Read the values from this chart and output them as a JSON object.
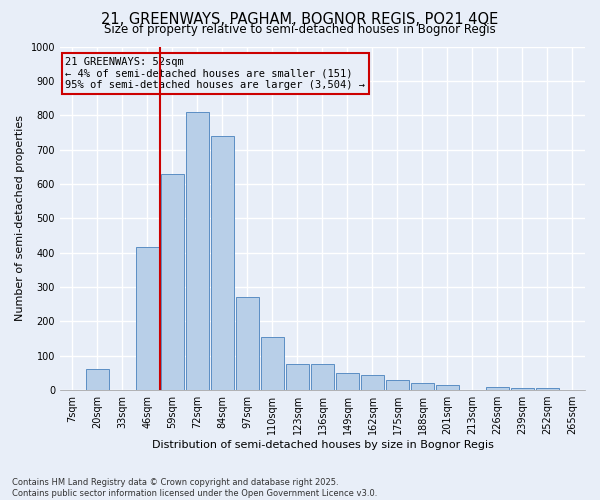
{
  "title": "21, GREENWAYS, PAGHAM, BOGNOR REGIS, PO21 4QE",
  "subtitle": "Size of property relative to semi-detached houses in Bognor Regis",
  "xlabel": "Distribution of semi-detached houses by size in Bognor Regis",
  "ylabel": "Number of semi-detached properties",
  "categories": [
    "7sqm",
    "20sqm",
    "33sqm",
    "46sqm",
    "59sqm",
    "72sqm",
    "84sqm",
    "97sqm",
    "110sqm",
    "123sqm",
    "136sqm",
    "149sqm",
    "162sqm",
    "175sqm",
    "188sqm",
    "201sqm",
    "213sqm",
    "226sqm",
    "239sqm",
    "252sqm",
    "265sqm"
  ],
  "values": [
    0,
    60,
    0,
    415,
    630,
    810,
    740,
    270,
    155,
    75,
    75,
    50,
    45,
    30,
    20,
    15,
    0,
    10,
    5,
    5,
    0
  ],
  "bar_color": "#b8cfe8",
  "bar_edge_color": "#5b8ec4",
  "property_sqm": 52,
  "annotation_title": "21 GREENWAYS: 52sqm",
  "annotation_line1": "← 4% of semi-detached houses are smaller (151)",
  "annotation_line2": "95% of semi-detached houses are larger (3,504) →",
  "annotation_box_color": "#cc0000",
  "line_color": "#cc0000",
  "ylim": [
    0,
    1000
  ],
  "yticks": [
    0,
    100,
    200,
    300,
    400,
    500,
    600,
    700,
    800,
    900,
    1000
  ],
  "footer_line1": "Contains HM Land Registry data © Crown copyright and database right 2025.",
  "footer_line2": "Contains public sector information licensed under the Open Government Licence v3.0.",
  "bg_color": "#e8eef8",
  "plot_bg_color": "#e8eef8",
  "grid_color": "#ffffff",
  "title_fontsize": 10.5,
  "subtitle_fontsize": 8.5,
  "axis_label_fontsize": 8,
  "tick_fontsize": 7,
  "annotation_fontsize": 7.5,
  "footer_fontsize": 6,
  "bar_width": 0.92,
  "line_x_index": 3.5
}
